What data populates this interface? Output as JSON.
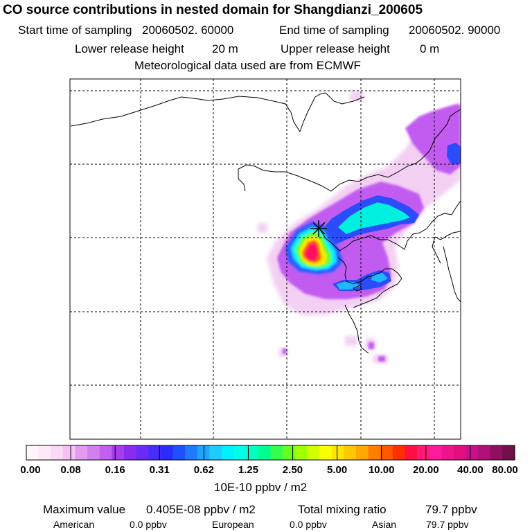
{
  "title": "CO  source contributions in nested domain for Shangdianzi_200605",
  "header": {
    "start_label": "Start time of sampling",
    "start_value": "20060502. 60000",
    "end_label": "End time of sampling",
    "end_value": "20060502. 90000",
    "lower_label": "Lower release height",
    "lower_value": "20 m",
    "upper_label": "Upper release height",
    "upper_value": "0 m",
    "met": "Meteorological data used are from ECMWF"
  },
  "colorbar": {
    "tick_labels": [
      "0.00",
      "0.08",
      "0.16",
      "0.31",
      "0.62",
      "1.25",
      "2.50",
      "5.00",
      "10.00",
      "20.00",
      "40.00",
      "80.00"
    ],
    "unit": "10E-10 ppbv / m2",
    "colors": [
      "#fff5fb",
      "#fde9f8",
      "#f9d9f5",
      "#f3c2f2",
      "#e29bf0",
      "#d27ff0",
      "#c160f0",
      "#a83cee",
      "#8a2bf0",
      "#6a2cf5",
      "#4a2cf8",
      "#2a2cfb",
      "#1f50ff",
      "#1f7aff",
      "#1fa5ff",
      "#1fcbff",
      "#00f0ff",
      "#00ffe8",
      "#00ffc0",
      "#00ff90",
      "#33ff50",
      "#66ff20",
      "#a0ff00",
      "#d0ff00",
      "#f8ff00",
      "#ffe600",
      "#ffc800",
      "#ffa800",
      "#ff8000",
      "#ff5a00",
      "#ff3000",
      "#ff1040",
      "#ff1a7a",
      "#ff1a9e",
      "#f0148c",
      "#e0107e",
      "#c8108a",
      "#b01078",
      "#901060",
      "#701048"
    ]
  },
  "stats": {
    "max_label": "Maximum value",
    "max_value": "0.405E-08 ppbv / m2",
    "total_label": "Total mixing ratio",
    "total_value": "79.7 ppbv",
    "american_label": "American",
    "american_value": "0.0 ppbv",
    "european_label": "European",
    "european_value": "0.0 ppbv",
    "asian_label": "Asian",
    "asian_value": "79.7 ppbv"
  },
  "map": {
    "frame_color": "#000000",
    "grid": "dashed",
    "marker": "receptor-cross"
  }
}
